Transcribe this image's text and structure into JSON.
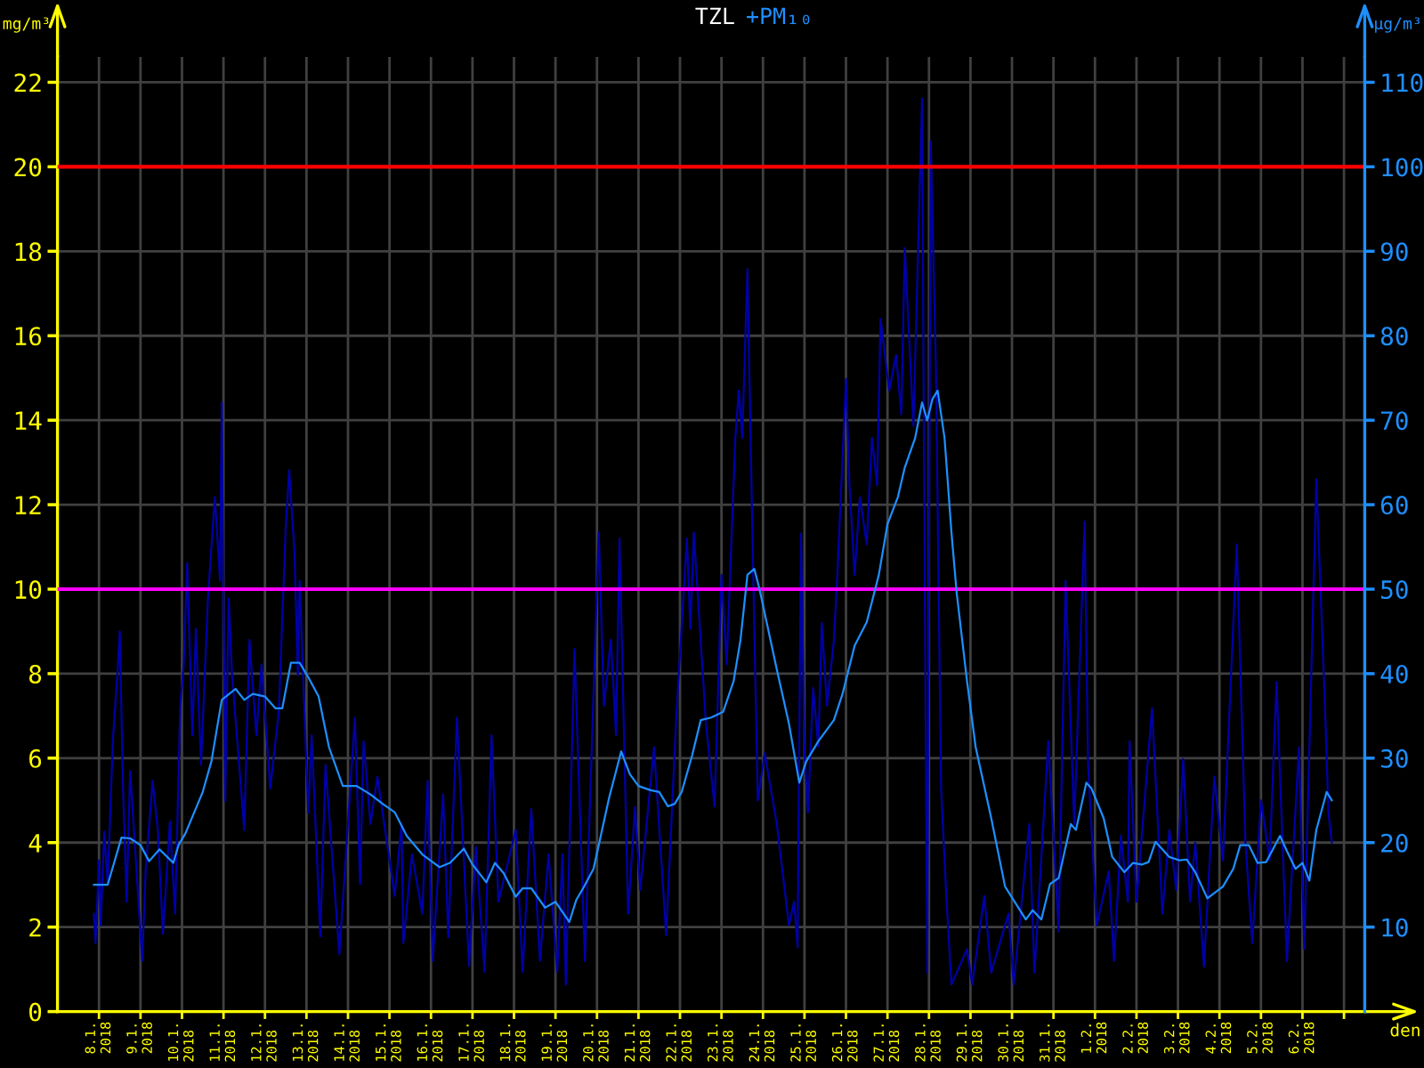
{
  "chart_data": {
    "type": "line",
    "title": "TZL",
    "subtitle": "+PM₁₀",
    "xlabel": "den",
    "ylabel": "mg/m³",
    "y2label": "µg/m³",
    "xlim": [
      "2018-01-07T00:00",
      "2018-02-07T12:00"
    ],
    "xticks": [
      {
        "value": "2018-01-08T00:00",
        "label": "8.1.\n2018"
      },
      {
        "value": "2018-01-09T00:00",
        "label": "9.1.\n2018"
      },
      {
        "value": "2018-01-10T00:00",
        "label": "10.1.\n2018"
      },
      {
        "value": "2018-01-11T00:00",
        "label": "11.1.\n2018"
      },
      {
        "value": "2018-01-12T00:00",
        "label": "12.1.\n2018"
      },
      {
        "value": "2018-01-13T00:00",
        "label": "13.1.\n2018"
      },
      {
        "value": "2018-01-14T00:00",
        "label": "14.1.\n2018"
      },
      {
        "value": "2018-01-15T00:00",
        "label": "15.1.\n2018"
      },
      {
        "value": "2018-01-16T00:00",
        "label": "16.1.\n2018"
      },
      {
        "value": "2018-01-17T00:00",
        "label": "17.1.\n2018"
      },
      {
        "value": "2018-01-18T00:00",
        "label": "18.1.\n2018"
      },
      {
        "value": "2018-01-19T00:00",
        "label": "19.1.\n2018"
      },
      {
        "value": "2018-01-20T00:00",
        "label": "20.1.\n2018"
      },
      {
        "value": "2018-01-21T00:00",
        "label": "21.1.\n2018"
      },
      {
        "value": "2018-01-22T00:00",
        "label": "22.1.\n2018"
      },
      {
        "value": "2018-01-23T00:00",
        "label": "23.1.\n2018"
      },
      {
        "value": "2018-01-24T00:00",
        "label": "24.1.\n2018"
      },
      {
        "value": "2018-01-25T00:00",
        "label": "25.1.\n2018"
      },
      {
        "value": "2018-01-26T00:00",
        "label": "26.1.\n2018"
      },
      {
        "value": "2018-01-27T00:00",
        "label": "27.1.\n2018"
      },
      {
        "value": "2018-01-28T00:00",
        "label": "28.1.\n2018"
      },
      {
        "value": "2018-01-29T00:00",
        "label": "29.1.\n2018"
      },
      {
        "value": "2018-01-30T00:00",
        "label": "30.1.\n2018"
      },
      {
        "value": "2018-01-31T00:00",
        "label": "31.1.\n2018"
      },
      {
        "value": "2018-02-01T00:00",
        "label": "1.2.\n2018"
      },
      {
        "value": "2018-02-02T00:00",
        "label": "2.2.\n2018"
      },
      {
        "value": "2018-02-03T00:00",
        "label": "3.2.\n2018"
      },
      {
        "value": "2018-02-04T00:00",
        "label": "4.2.\n2018"
      },
      {
        "value": "2018-02-05T00:00",
        "label": "5.2.\n2018"
      },
      {
        "value": "2018-02-06T00:00",
        "label": "6.2.\n2018"
      },
      {
        "value": "2018-02-07T00:00",
        "label": null
      }
    ],
    "ylim": [
      0,
      22.6
    ],
    "yticks": [
      0,
      2,
      4,
      6,
      8,
      10,
      12,
      14,
      16,
      18,
      20,
      22
    ],
    "y2lim": [
      0,
      113
    ],
    "y2ticks": [
      10,
      20,
      30,
      40,
      50,
      60,
      70,
      80,
      90,
      100,
      110
    ],
    "grid": true,
    "marker": "none",
    "line_style": "solid",
    "ref_lines": [
      {
        "axis": "y2",
        "value": 100,
        "color": "#ff0000"
      },
      {
        "axis": "y2",
        "value": 50,
        "color": "#ff00ff"
      }
    ],
    "series": [
      {
        "color": "#0000a8",
        "axis": "y2",
        "x": [
          "2018-01-07T21:00",
          "2018-01-07T22:00",
          "2018-01-08T00:00",
          "2018-01-08T01:00",
          "2018-01-08T03:00",
          "2018-01-08T05:00",
          "2018-01-08T08:00",
          "2018-01-08T11:00",
          "2018-01-08T12:00",
          "2018-01-08T14:00",
          "2018-01-08T16:00",
          "2018-01-08T18:00",
          "2018-01-08T20:00",
          "2018-01-09T01:00",
          "2018-01-09T03:00",
          "2018-01-09T07:00",
          "2018-01-09T10:00",
          "2018-01-09T13:00",
          "2018-01-09T17:00",
          "2018-01-09T20:00",
          "2018-01-09T23:00",
          "2018-01-10T01:00",
          "2018-01-10T03:00",
          "2018-01-10T06:00",
          "2018-01-10T08:00",
          "2018-01-10T11:00",
          "2018-01-10T15:00",
          "2018-01-10T19:00",
          "2018-01-10T22:00",
          "2018-01-10T23:00",
          "2018-01-11T01:00",
          "2018-01-11T03:00",
          "2018-01-11T05:00",
          "2018-01-11T12:00",
          "2018-01-11T15:00",
          "2018-01-11T19:00",
          "2018-01-11T22:00",
          "2018-01-12T03:00",
          "2018-01-12T08:00",
          "2018-01-12T12:00",
          "2018-01-12T14:00",
          "2018-01-12T17:00",
          "2018-01-12T19:00",
          "2018-01-12T20:00",
          "2018-01-13T01:00",
          "2018-01-13T03:00",
          "2018-01-13T08:00",
          "2018-01-13T11:00",
          "2018-01-13T19:00",
          "2018-01-14T04:00",
          "2018-01-14T07:00",
          "2018-01-14T09:00",
          "2018-01-14T13:00",
          "2018-01-14T17:00",
          "2018-01-15T03:00",
          "2018-01-15T07:00",
          "2018-01-15T08:00",
          "2018-01-15T13:00",
          "2018-01-15T19:00",
          "2018-01-15T22:00",
          "2018-01-16T01:00",
          "2018-01-16T07:00",
          "2018-01-16T10:00",
          "2018-01-16T15:00",
          "2018-01-16T22:00",
          "2018-01-17T02:00",
          "2018-01-17T07:00",
          "2018-01-17T11:00",
          "2018-01-17T15:00",
          "2018-01-18T01:00",
          "2018-01-18T05:00",
          "2018-01-18T10:00",
          "2018-01-18T15:00",
          "2018-01-18T20:00",
          "2018-01-19T01:00",
          "2018-01-19T04:00",
          "2018-01-19T06:00",
          "2018-01-19T11:00",
          "2018-01-19T17:00",
          "2018-01-20T01:00",
          "2018-01-20T04:00",
          "2018-01-20T08:00",
          "2018-01-20T11:00",
          "2018-01-20T13:00",
          "2018-01-20T18:00",
          "2018-01-20T22:00",
          "2018-01-21T01:00",
          "2018-01-21T09:00",
          "2018-01-21T16:00",
          "2018-01-21T22:00",
          "2018-01-22T04:00",
          "2018-01-22T06:00",
          "2018-01-22T08:00",
          "2018-01-22T15:00",
          "2018-01-22T20:00",
          "2018-01-23T00:00",
          "2018-01-23T03:00",
          "2018-01-23T08:00",
          "2018-01-23T10:00",
          "2018-01-23T12:00",
          "2018-01-23T15:00",
          "2018-01-23T18:00",
          "2018-01-23T21:00",
          "2018-01-24T01:00",
          "2018-01-24T08:00",
          "2018-01-24T15:00",
          "2018-01-24T18:00",
          "2018-01-24T20:00",
          "2018-01-24T22:00",
          "2018-01-25T00:00",
          "2018-01-25T02:00",
          "2018-01-25T05:00",
          "2018-01-25T08:00",
          "2018-01-25T10:00",
          "2018-01-25T13:00",
          "2018-01-25T17:00",
          "2018-01-25T19:00",
          "2018-01-26T00:00",
          "2018-01-26T02:00",
          "2018-01-26T05:00",
          "2018-01-26T08:00",
          "2018-01-26T12:00",
          "2018-01-26T15:00",
          "2018-01-26T18:00",
          "2018-01-26T20:00",
          "2018-01-27T01:00",
          "2018-01-27T05:00",
          "2018-01-27T08:00",
          "2018-01-27T10:00",
          "2018-01-27T15:00",
          "2018-01-27T20:00",
          "2018-01-27T21:00",
          "2018-01-27T23:00",
          "2018-01-28T01:00",
          "2018-01-28T04:00",
          "2018-01-28T07:00",
          "2018-01-28T10:00",
          "2018-01-28T13:00",
          "2018-01-28T22:00",
          "2018-01-29T01:00",
          "2018-01-29T08:00",
          "2018-01-29T12:00",
          "2018-01-29T22:00",
          "2018-01-30T01:00",
          "2018-01-30T05:00",
          "2018-01-30T10:00",
          "2018-01-30T13:00",
          "2018-01-30T21:00",
          "2018-01-31T03:00",
          "2018-01-31T07:00",
          "2018-01-31T12:00",
          "2018-01-31T18:00",
          "2018-01-31T20:00",
          "2018-02-01T01:00",
          "2018-02-01T08:00",
          "2018-02-01T11:00",
          "2018-02-01T15:00",
          "2018-02-01T19:00",
          "2018-02-01T20:00",
          "2018-02-02T00:00",
          "2018-02-02T09:00",
          "2018-02-02T15:00",
          "2018-02-02T19:00",
          "2018-02-02T23:00",
          "2018-02-03T03:00",
          "2018-02-03T07:00",
          "2018-02-03T10:00",
          "2018-02-03T15:00",
          "2018-02-03T21:00",
          "2018-02-04T02:00",
          "2018-02-04T10:00",
          "2018-02-04T15:00",
          "2018-02-04T19:00",
          "2018-02-05T00:00",
          "2018-02-05T05:00",
          "2018-02-05T09:00",
          "2018-02-05T15:00",
          "2018-02-05T22:00",
          "2018-02-06T01:00",
          "2018-02-06T08:00",
          "2018-02-06T13:00",
          "2018-02-06T15:00",
          "2018-02-06T17:00"
        ],
        "values": [
          11.6,
          8.1,
          17.9,
          10.2,
          21.3,
          15.1,
          32.0,
          41.1,
          45.0,
          25.7,
          13.0,
          28.5,
          22.2,
          6.0,
          16.8,
          27.3,
          21.5,
          9.2,
          22.5,
          11.6,
          36.2,
          41.1,
          53.1,
          32.7,
          45.3,
          29.2,
          48.9,
          60.9,
          51.0,
          72.1,
          24.9,
          48.9,
          39.7,
          21.5,
          44.0,
          32.7,
          41.1,
          26.4,
          35.5,
          57.4,
          64.1,
          54.6,
          39.8,
          51.0,
          23.5,
          32.7,
          8.9,
          29.2,
          6.8,
          34.8,
          15.1,
          32.0,
          22.2,
          27.8,
          13.7,
          22.2,
          8.1,
          18.6,
          11.6,
          27.3,
          6.0,
          25.7,
          8.8,
          34.8,
          5.4,
          19.5,
          4.7,
          32.7,
          13.0,
          21.5,
          4.7,
          24.0,
          6.0,
          18.6,
          4.7,
          18.6,
          3.2,
          42.9,
          6.0,
          56.7,
          36.2,
          44.0,
          32.7,
          56.0,
          11.6,
          24.2,
          14.4,
          31.3,
          9.0,
          35.5,
          56.0,
          45.3,
          56.7,
          34.1,
          24.3,
          51.7,
          41.1,
          67.9,
          73.5,
          67.9,
          87.9,
          55.3,
          25.0,
          30.6,
          22.2,
          10.2,
          13.0,
          7.6,
          56.6,
          30.6,
          23.6,
          38.3,
          31.3,
          46.0,
          36.2,
          43.9,
          51.7,
          74.9,
          62.3,
          51.7,
          60.9,
          55.3,
          67.9,
          62.3,
          82.0,
          73.5,
          77.7,
          70.7,
          90.4,
          69.3,
          108.1,
          69.3,
          4.6,
          103.0,
          76.3,
          26.4,
          13.7,
          3.2,
          7.4,
          3.2,
          13.7,
          4.6,
          11.6,
          3.2,
          11.6,
          22.2,
          4.6,
          32.0,
          9.5,
          51.0,
          22.2,
          58.0,
          29.2,
          10.2,
          16.6,
          6.0,
          20.8,
          13.0,
          32.0,
          13.0,
          35.9,
          11.6,
          21.5,
          14.4,
          29.9,
          13.0,
          20.0,
          5.3,
          27.8,
          17.9,
          55.3,
          20.0,
          8.1,
          25.0,
          17.9,
          39.0,
          6.0,
          31.3,
          7.4,
          63.0,
          36.2,
          23.6,
          20.0
        ]
      },
      {
        "color": "#1e8fff",
        "axis": "y2",
        "x": [
          "2018-01-07T21:00",
          "2018-01-08T05:00",
          "2018-01-08T13:00",
          "2018-01-08T18:00",
          "2018-01-09T00:00",
          "2018-01-09T05:00",
          "2018-01-09T11:00",
          "2018-01-09T19:00",
          "2018-01-09T22:00",
          "2018-01-10T02:00",
          "2018-01-10T12:00",
          "2018-01-10T17:00",
          "2018-01-10T23:00",
          "2018-01-11T07:00",
          "2018-01-11T12:00",
          "2018-01-11T17:00",
          "2018-01-12T00:00",
          "2018-01-12T06:00",
          "2018-01-12T10:00",
          "2018-01-12T15:00",
          "2018-01-12T20:00",
          "2018-01-13T01:00",
          "2018-01-13T07:00",
          "2018-01-13T13:00",
          "2018-01-13T21:00",
          "2018-01-14T05:00",
          "2018-01-14T13:00",
          "2018-01-14T20:00",
          "2018-01-15T03:00",
          "2018-01-15T10:00",
          "2018-01-15T19:00",
          "2018-01-16T05:00",
          "2018-01-16T11:00",
          "2018-01-16T19:00",
          "2018-01-17T00:00",
          "2018-01-17T08:00",
          "2018-01-17T13:00",
          "2018-01-17T18:00",
          "2018-01-18T01:00",
          "2018-01-18T05:00",
          "2018-01-18T10:00",
          "2018-01-18T18:00",
          "2018-01-19T00:00",
          "2018-01-19T08:00",
          "2018-01-19T12:00",
          "2018-01-19T16:00",
          "2018-01-19T22:00",
          "2018-01-20T07:00",
          "2018-01-20T14:00",
          "2018-01-20T19:00",
          "2018-01-21T00:00",
          "2018-01-21T07:00",
          "2018-01-21T12:00",
          "2018-01-21T17:00",
          "2018-01-21T21:00",
          "2018-01-22T01:00",
          "2018-01-22T07:00",
          "2018-01-22T12:00",
          "2018-01-22T18:00",
          "2018-01-23T01:00",
          "2018-01-23T07:00",
          "2018-01-23T11:00",
          "2018-01-23T15:00",
          "2018-01-23T19:00",
          "2018-01-23T22:00",
          "2018-01-24T08:00",
          "2018-01-24T15:00",
          "2018-01-24T21:00",
          "2018-01-25T01:00",
          "2018-01-25T08:00",
          "2018-01-25T17:00",
          "2018-01-25T22:00",
          "2018-01-26T05:00",
          "2018-01-26T12:00",
          "2018-01-26T19:00",
          "2018-01-27T00:00",
          "2018-01-27T06:00",
          "2018-01-27T10:00",
          "2018-01-27T16:00",
          "2018-01-27T20:00",
          "2018-01-27T23:00",
          "2018-01-28T02:00",
          "2018-01-28T05:00",
          "2018-01-28T09:00",
          "2018-01-28T13:00",
          "2018-01-28T16:00",
          "2018-01-28T22:00",
          "2018-01-29T03:00",
          "2018-01-29T12:00",
          "2018-01-29T20:00",
          "2018-01-30T08:00",
          "2018-01-30T12:00",
          "2018-01-30T17:00",
          "2018-01-30T22:00",
          "2018-01-31T03:00",
          "2018-01-31T10:00",
          "2018-01-31T13:00",
          "2018-01-31T19:00",
          "2018-01-31T22:00",
          "2018-02-01T05:00",
          "2018-02-01T10:00",
          "2018-02-01T17:00",
          "2018-02-01T22:00",
          "2018-02-02T03:00",
          "2018-02-02T07:00",
          "2018-02-02T11:00",
          "2018-02-02T19:00",
          "2018-02-03T01:00",
          "2018-02-03T05:00",
          "2018-02-03T10:00",
          "2018-02-03T17:00",
          "2018-02-04T02:00",
          "2018-02-04T08:00",
          "2018-02-04T12:00",
          "2018-02-04T17:00",
          "2018-02-04T22:00",
          "2018-02-05T03:00",
          "2018-02-05T11:00",
          "2018-02-05T15:00",
          "2018-02-05T20:00",
          "2018-02-06T00:00",
          "2018-02-06T04:00",
          "2018-02-06T08:00",
          "2018-02-06T14:00",
          "2018-02-06T17:00"
        ],
        "values": [
          15.0,
          15.0,
          20.6,
          20.5,
          19.7,
          17.8,
          19.2,
          17.6,
          19.7,
          21.1,
          26.0,
          29.6,
          36.9,
          38.2,
          36.9,
          37.6,
          37.3,
          35.9,
          35.9,
          41.3,
          41.3,
          39.6,
          37.3,
          31.3,
          26.7,
          26.7,
          25.7,
          24.6,
          23.6,
          20.8,
          18.6,
          17.1,
          17.6,
          19.3,
          17.4,
          15.3,
          17.6,
          16.4,
          13.6,
          14.6,
          14.6,
          12.3,
          13.0,
          10.6,
          13.2,
          14.6,
          16.9,
          25.3,
          30.8,
          28.1,
          26.7,
          26.2,
          26.0,
          24.3,
          24.6,
          26.0,
          30.3,
          34.5,
          34.8,
          35.5,
          39.1,
          44.0,
          51.7,
          52.4,
          50.0,
          40.5,
          34.1,
          27.1,
          29.6,
          32.0,
          34.5,
          37.6,
          43.3,
          46.1,
          51.7,
          57.7,
          60.9,
          64.4,
          67.9,
          72.1,
          70.0,
          72.5,
          73.5,
          67.9,
          56.7,
          49.6,
          39.1,
          31.3,
          22.9,
          14.8,
          10.9,
          12.0,
          10.9,
          15.1,
          15.8,
          22.2,
          21.5,
          27.1,
          26.4,
          22.9,
          18.3,
          16.5,
          17.6,
          17.4,
          17.7,
          20.1,
          18.3,
          17.9,
          18.0,
          16.5,
          13.4,
          14.8,
          16.9,
          19.7,
          19.7,
          17.6,
          17.7,
          20.8,
          19.0,
          16.9,
          17.6,
          15.5,
          21.5,
          26.0,
          25.0
        ]
      }
    ]
  }
}
